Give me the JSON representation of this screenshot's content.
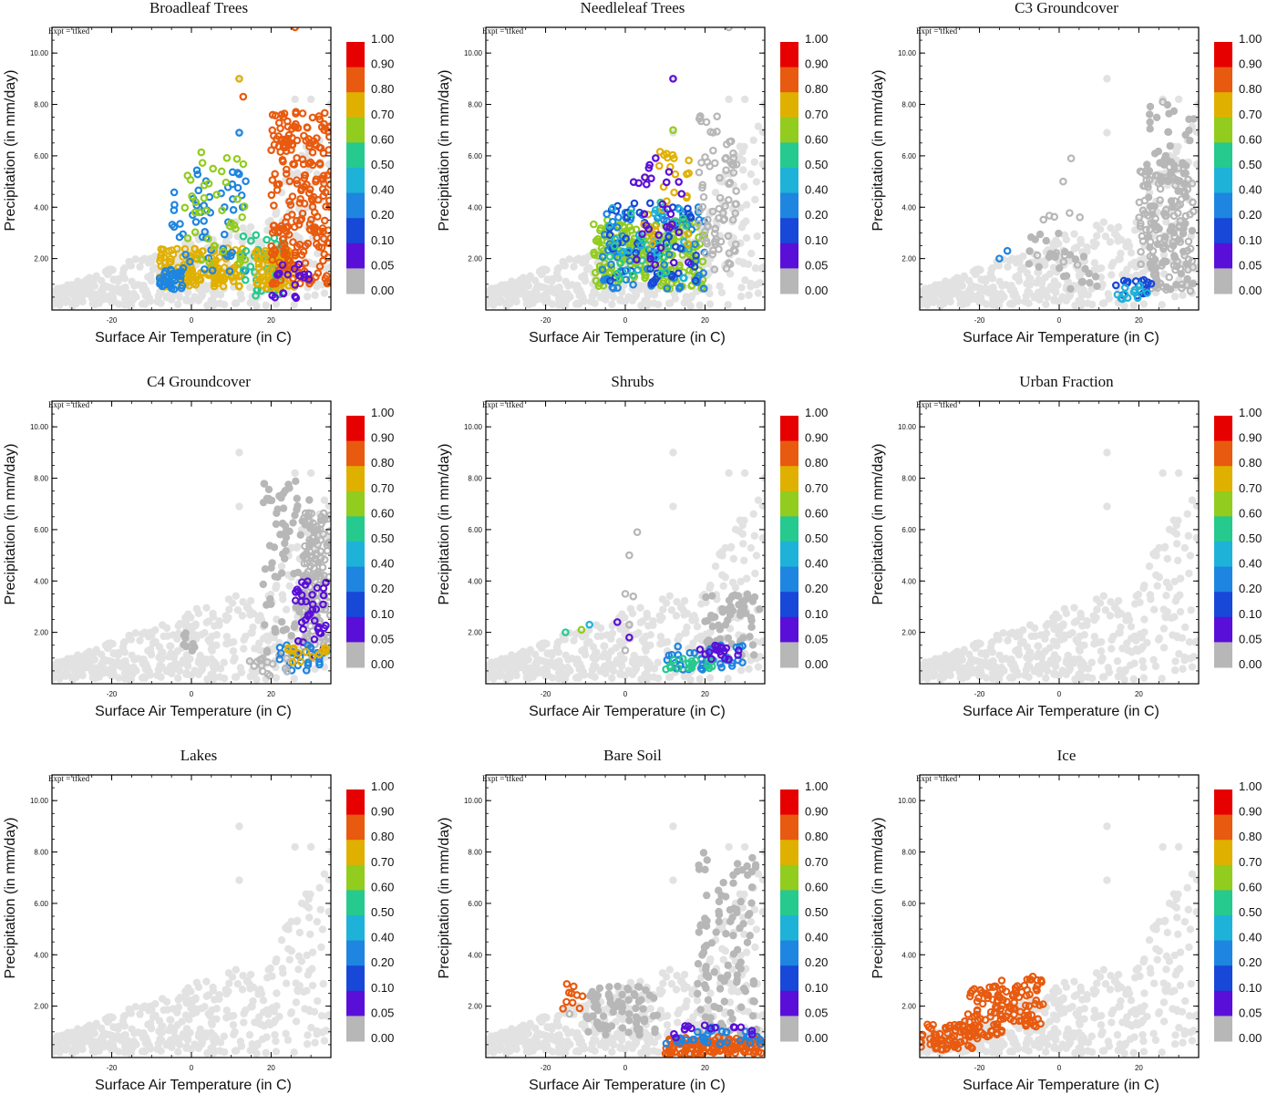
{
  "figure": {
    "expt_label": "Expt = tfked",
    "xlabel": "Surface Air Temperature (in C)",
    "ylabel": "Precipitation (in mm/day)"
  },
  "colorbar": {
    "levels": [
      "1.00",
      "0.90",
      "0.80",
      "0.70",
      "0.60",
      "0.50",
      "0.40",
      "0.20",
      "0.10",
      "0.05",
      "0.00"
    ],
    "colors": [
      "#e60000",
      "#e85a0f",
      "#e0b000",
      "#92cc1e",
      "#26c98e",
      "#1fb2d8",
      "#1e85e0",
      "#1848d8",
      "#5a0fd8",
      "#b7b7b7"
    ]
  },
  "colors": {
    "background_cloud": "#e2e2e2",
    "zero_fraction": "#b7b7b7",
    "frame": "#000000"
  },
  "chart_data": [
    {
      "type": "scatter",
      "title": "Broadleaf Trees",
      "xlim": [
        -35,
        35
      ],
      "ylim": [
        0,
        11
      ],
      "xticks": [
        "-20",
        "0",
        "20"
      ],
      "yticks": [
        "2.00",
        "4.00",
        "6.00",
        "8.00",
        "10.00"
      ],
      "clusters": [
        {
          "x": [
            -8,
            13
          ],
          "y": [
            0.9,
            2.4
          ],
          "fraction": 0.8,
          "n": 130
        },
        {
          "x": [
            -8,
            -2
          ],
          "y": [
            0.8,
            1.6
          ],
          "fraction": 0.4,
          "n": 35
        },
        {
          "x": [
            -5,
            14
          ],
          "y": [
            1.5,
            5.5
          ],
          "fraction": 0.4,
          "n": 55
        },
        {
          "x": [
            -2,
            14
          ],
          "y": [
            1.8,
            6.2
          ],
          "fraction": 0.7,
          "n": 40
        },
        {
          "x": [
            13,
            23
          ],
          "y": [
            0.5,
            3.0
          ],
          "fraction": 0.6,
          "n": 45
        },
        {
          "x": [
            16,
            26
          ],
          "y": [
            0.8,
            2.4
          ],
          "fraction": 0.8,
          "n": 70
        },
        {
          "x": [
            20,
            35
          ],
          "y": [
            1.0,
            7.8
          ],
          "fraction": 0.9,
          "n": 240
        },
        {
          "x": [
            20,
            30
          ],
          "y": [
            0.3,
            1.8
          ],
          "fraction": 0.1,
          "n": 20
        }
      ],
      "points": [
        {
          "x": 12,
          "y": 9.0,
          "fraction": 0.8
        },
        {
          "x": 13,
          "y": 8.3,
          "fraction": 0.9
        },
        {
          "x": 12,
          "y": 6.9,
          "fraction": 0.4
        },
        {
          "x": 26,
          "y": 11.0,
          "fraction": 0.9
        }
      ]
    },
    {
      "type": "scatter",
      "title": "Needleleaf Trees",
      "xlim": [
        -35,
        35
      ],
      "ylim": [
        0,
        11
      ],
      "xticks": [
        "-20",
        "0",
        "20"
      ],
      "yticks": [
        "2.00",
        "4.00",
        "6.00",
        "8.00",
        "10.00"
      ],
      "clusters": [
        {
          "x": [
            -8,
            20
          ],
          "y": [
            0.8,
            3.5
          ],
          "fraction": 0.7,
          "n": 190
        },
        {
          "x": [
            -6,
            20
          ],
          "y": [
            0.8,
            4.0
          ],
          "fraction": 0.4,
          "n": 80
        },
        {
          "x": [
            -4,
            18
          ],
          "y": [
            1.0,
            4.2
          ],
          "fraction": 0.2,
          "n": 50
        },
        {
          "x": [
            -4,
            16
          ],
          "y": [
            1.2,
            4.0
          ],
          "fraction": 0.5,
          "n": 25
        },
        {
          "x": [
            -4,
            16
          ],
          "y": [
            1.2,
            4.2
          ],
          "fraction": 0.6,
          "n": 20
        },
        {
          "x": [
            4,
            16
          ],
          "y": [
            2.5,
            6.2
          ],
          "fraction": 0.8,
          "n": 30
        },
        {
          "x": [
            2,
            16
          ],
          "y": [
            1.5,
            6.0
          ],
          "fraction": 0.1,
          "n": 30
        },
        {
          "x": [
            18,
            28
          ],
          "y": [
            1.5,
            7.6
          ],
          "fraction": 0.05,
          "n": 80
        }
      ],
      "points": [
        {
          "x": 12,
          "y": 9.0,
          "fraction": 0.1
        },
        {
          "x": 12,
          "y": 7.0,
          "fraction": 0.7
        },
        {
          "x": 26,
          "y": 11.0,
          "fraction": 0.05
        }
      ]
    },
    {
      "type": "scatter",
      "title": "C3 Groundcover",
      "xlim": [
        -35,
        35
      ],
      "ylim": [
        0,
        11
      ],
      "xticks": [
        "-20",
        "0",
        "20"
      ],
      "yticks": [
        "2.00",
        "4.00",
        "6.00",
        "8.00",
        "10.00"
      ],
      "clusters": [
        {
          "x": [
            22,
            34
          ],
          "y": [
            0.8,
            8.0
          ],
          "fraction": 0.0,
          "n": 90
        },
        {
          "x": [
            -10,
            10
          ],
          "y": [
            0.8,
            3.0
          ],
          "fraction": 0.0,
          "n": 25
        },
        {
          "x": [
            20,
            34
          ],
          "y": [
            0.7,
            5.6
          ],
          "fraction": 0.05,
          "n": 120
        },
        {
          "x": [
            -6,
            6
          ],
          "y": [
            1.0,
            3.8
          ],
          "fraction": 0.05,
          "n": 12
        },
        {
          "x": [
            14,
            24
          ],
          "y": [
            0.5,
            1.2
          ],
          "fraction": 0.2,
          "n": 18
        },
        {
          "x": [
            14,
            24
          ],
          "y": [
            0.4,
            1.0
          ],
          "fraction": 0.5,
          "n": 12
        }
      ],
      "points": [
        {
          "x": 26,
          "y": 8.1,
          "fraction": 0.05
        },
        {
          "x": 3,
          "y": 5.9,
          "fraction": 0.05
        },
        {
          "x": 1,
          "y": 5.0,
          "fraction": 0.05
        },
        {
          "x": -15,
          "y": 2.0,
          "fraction": 0.4
        },
        {
          "x": -13,
          "y": 2.3,
          "fraction": 0.4
        }
      ]
    },
    {
      "type": "scatter",
      "title": "C4 Groundcover",
      "xlim": [
        -35,
        35
      ],
      "ylim": [
        0,
        11
      ],
      "xticks": [
        "-20",
        "0",
        "20"
      ],
      "yticks": [
        "2.00",
        "4.00",
        "6.00",
        "8.00",
        "10.00"
      ],
      "clusters": [
        {
          "x": [
            18,
            32
          ],
          "y": [
            1.0,
            8.0
          ],
          "fraction": 0.0,
          "n": 90
        },
        {
          "x": [
            -2,
            2
          ],
          "y": [
            1.0,
            2.0
          ],
          "fraction": 0.0,
          "n": 8
        },
        {
          "x": [
            28,
            35
          ],
          "y": [
            1.0,
            6.7
          ],
          "fraction": 0.05,
          "n": 120
        },
        {
          "x": [
            26,
            34
          ],
          "y": [
            1.0,
            4.0
          ],
          "fraction": 0.1,
          "n": 40
        },
        {
          "x": [
            22,
            34
          ],
          "y": [
            0.5,
            1.6
          ],
          "fraction": 0.4,
          "n": 25
        },
        {
          "x": [
            24,
            34
          ],
          "y": [
            0.8,
            1.4
          ],
          "fraction": 0.8,
          "n": 15
        },
        {
          "x": [
            12,
            24
          ],
          "y": [
            0.3,
            1.0
          ],
          "fraction": 0.05,
          "n": 15
        }
      ],
      "points": []
    },
    {
      "type": "scatter",
      "title": "Shrubs",
      "xlim": [
        -35,
        35
      ],
      "ylim": [
        0,
        11
      ],
      "xticks": [
        "-20",
        "0",
        "20"
      ],
      "yticks": [
        "2.00",
        "4.00",
        "6.00",
        "8.00",
        "10.00"
      ],
      "clusters": [
        {
          "x": [
            20,
            34
          ],
          "y": [
            0.9,
            3.5
          ],
          "fraction": 0.0,
          "n": 60
        },
        {
          "x": [
            10,
            30
          ],
          "y": [
            0.5,
            1.5
          ],
          "fraction": 0.4,
          "n": 40
        },
        {
          "x": [
            10,
            22
          ],
          "y": [
            0.5,
            1.0
          ],
          "fraction": 0.6,
          "n": 18
        },
        {
          "x": [
            18,
            30
          ],
          "y": [
            0.8,
            1.5
          ],
          "fraction": 0.1,
          "n": 18
        }
      ],
      "points": [
        {
          "x": 3,
          "y": 5.9,
          "fraction": 0.05
        },
        {
          "x": 1,
          "y": 5.0,
          "fraction": 0.05
        },
        {
          "x": 0,
          "y": 3.5,
          "fraction": 0.05
        },
        {
          "x": 2,
          "y": 3.4,
          "fraction": 0.05
        },
        {
          "x": -2,
          "y": 2.4,
          "fraction": 0.1
        },
        {
          "x": 1,
          "y": 2.3,
          "fraction": 0.05
        },
        {
          "x": 1,
          "y": 1.8,
          "fraction": 0.1
        },
        {
          "x": 0,
          "y": 1.3,
          "fraction": 0.05
        },
        {
          "x": -15,
          "y": 2.0,
          "fraction": 0.6
        },
        {
          "x": -11,
          "y": 2.1,
          "fraction": 0.7
        },
        {
          "x": -9,
          "y": 2.3,
          "fraction": 0.5
        }
      ]
    },
    {
      "type": "scatter",
      "title": "Urban Fraction",
      "xlim": [
        -35,
        35
      ],
      "ylim": [
        0,
        11
      ],
      "xticks": [
        "-20",
        "0",
        "20"
      ],
      "yticks": [
        "2.00",
        "4.00",
        "6.00",
        "8.00",
        "10.00"
      ],
      "clusters": [],
      "points": []
    },
    {
      "type": "scatter",
      "title": "Lakes",
      "xlim": [
        -35,
        35
      ],
      "ylim": [
        0,
        11
      ],
      "xticks": [
        "-20",
        "0",
        "20"
      ],
      "yticks": [
        "2.00",
        "4.00",
        "6.00",
        "8.00",
        "10.00"
      ],
      "clusters": [],
      "points": []
    },
    {
      "type": "scatter",
      "title": "Bare Soil",
      "xlim": [
        -35,
        35
      ],
      "ylim": [
        0,
        11
      ],
      "xticks": [
        "-20",
        "0",
        "20"
      ],
      "yticks": [
        "2.00",
        "4.00",
        "6.00",
        "8.00",
        "10.00"
      ],
      "clusters": [
        {
          "x": [
            -10,
            8
          ],
          "y": [
            0.8,
            2.8
          ],
          "fraction": 0.0,
          "n": 80
        },
        {
          "x": [
            18,
            33
          ],
          "y": [
            0.8,
            8.0
          ],
          "fraction": 0.0,
          "n": 110
        },
        {
          "x": [
            10,
            35
          ],
          "y": [
            0.1,
            0.8
          ],
          "fraction": 0.9,
          "n": 140
        },
        {
          "x": [
            10,
            34
          ],
          "y": [
            0.5,
            1.2
          ],
          "fraction": 0.4,
          "n": 35
        },
        {
          "x": [
            12,
            32
          ],
          "y": [
            0.7,
            1.3
          ],
          "fraction": 0.1,
          "n": 15
        },
        {
          "x": [
            -20,
            -10
          ],
          "y": [
            1.8,
            2.9
          ],
          "fraction": 0.9,
          "n": 10
        }
      ],
      "points": [
        {
          "x": -14,
          "y": 1.7,
          "fraction": 0.05
        }
      ]
    },
    {
      "type": "scatter",
      "title": "Ice",
      "xlim": [
        -35,
        35
      ],
      "ylim": [
        0,
        11
      ],
      "xticks": [
        "-20",
        "0",
        "20"
      ],
      "yticks": [
        "2.00",
        "4.00",
        "6.00",
        "8.00",
        "10.00"
      ],
      "clusters": [
        {
          "x": [
            -35,
            -20
          ],
          "y": [
            0.3,
            1.3
          ],
          "fraction": 0.9,
          "n": 70
        },
        {
          "x": [
            -24,
            -14
          ],
          "y": [
            0.8,
            2.8
          ],
          "fraction": 0.9,
          "n": 60
        },
        {
          "x": [
            -16,
            -4
          ],
          "y": [
            1.2,
            3.2
          ],
          "fraction": 0.9,
          "n": 70
        }
      ],
      "points": []
    }
  ]
}
